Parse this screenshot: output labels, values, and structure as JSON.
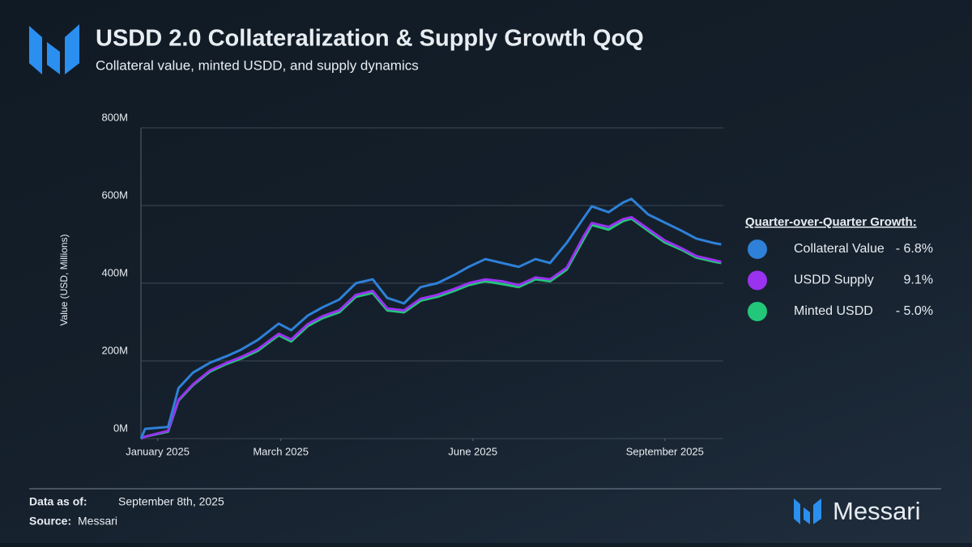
{
  "chart_data": {
    "type": "line",
    "title": "USDD 2.0 Collateralization & Supply Growth QoQ",
    "subtitle": "Collateral value, minted USDD, and supply dynamics",
    "y_label": "Value (USD, Millions)",
    "legend_title": "Quarter-over-Quarter Growth:",
    "x": [
      -8,
      -6,
      5,
      10,
      17,
      25,
      33,
      40,
      48,
      58,
      64,
      72,
      79,
      87,
      95,
      103,
      110,
      118,
      126,
      134,
      142,
      149,
      157,
      165,
      173,
      181,
      188,
      196,
      204,
      208,
      216,
      223,
      227,
      235,
      243,
      251,
      258,
      266,
      270
    ],
    "xlim": [
      -8,
      271
    ],
    "xticks": [
      {
        "value": 0,
        "label": "January 2025"
      },
      {
        "value": 59,
        "label": "March 2025"
      },
      {
        "value": 151,
        "label": "June 2025"
      },
      {
        "value": 243,
        "label": "September 2025"
      }
    ],
    "ylim": [
      0,
      800
    ],
    "yticks": [
      {
        "value": 0,
        "label": "0M"
      },
      {
        "value": 200,
        "label": "200M"
      },
      {
        "value": 400,
        "label": "400M"
      },
      {
        "value": 600,
        "label": "600M"
      },
      {
        "value": 800,
        "label": "800M"
      }
    ],
    "grid": true,
    "series": [
      {
        "name": "Collateral Value",
        "growth_label": "- 6.8%",
        "color": "#2f80d8",
        "values": [
          0,
          25,
          30,
          130,
          170,
          195,
          212,
          229,
          254,
          296,
          279,
          317,
          338,
          358,
          400,
          410,
          362,
          348,
          390,
          400,
          421,
          442,
          462,
          452,
          442,
          462,
          452,
          504,
          567,
          598,
          583,
          608,
          617,
          577,
          556,
          535,
          515,
          504,
          500
        ]
      },
      {
        "name": "USDD Supply",
        "growth_label": "9.1%",
        "color": "#9a32f0",
        "values": [
          0,
          5,
          20,
          100,
          140,
          175,
          195,
          210,
          230,
          270,
          255,
          295,
          315,
          330,
          370,
          380,
          335,
          330,
          360,
          370,
          385,
          400,
          410,
          405,
          395,
          415,
          410,
          440,
          520,
          555,
          545,
          565,
          570,
          540,
          510,
          490,
          470,
          460,
          455
        ]
      },
      {
        "name": "Minted USDD",
        "growth_label": "- 5.0%",
        "color": "#22c77a",
        "values": [
          0,
          5,
          18,
          98,
          138,
          172,
          192,
          206,
          226,
          266,
          250,
          290,
          310,
          325,
          365,
          375,
          330,
          325,
          355,
          365,
          380,
          395,
          405,
          398,
          390,
          410,
          405,
          435,
          512,
          550,
          538,
          560,
          566,
          535,
          505,
          486,
          466,
          456,
          452
        ]
      }
    ]
  },
  "footer": {
    "date_label": "Data as of:",
    "date": "September 8th, 2025",
    "source_label": "Source:",
    "source": "Messari"
  },
  "brand": "Messari"
}
